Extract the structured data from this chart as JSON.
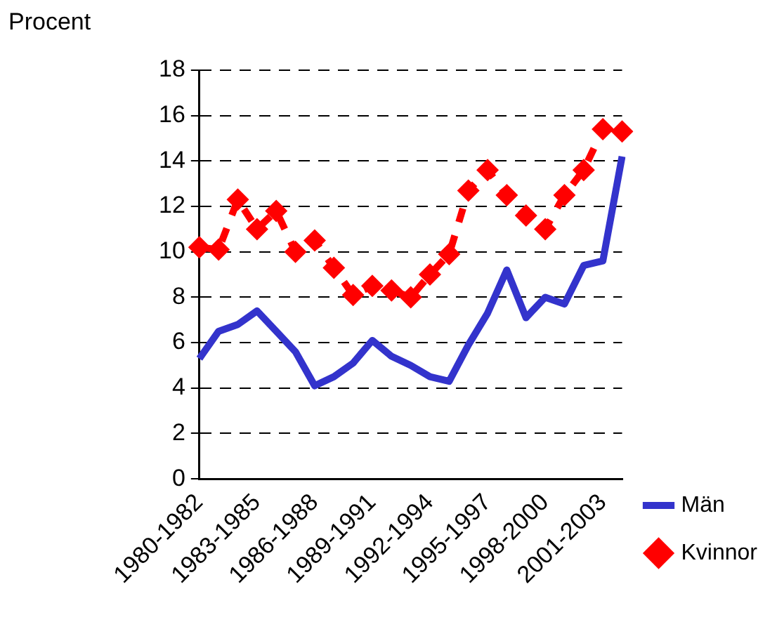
{
  "chart_data": {
    "type": "line",
    "ylabel": "Procent",
    "categories": [
      "1980-1982",
      null,
      null,
      "1983-1985",
      null,
      null,
      "1986-1988",
      null,
      null,
      "1989-1991",
      null,
      null,
      "1992-1994",
      null,
      null,
      "1995-1997",
      null,
      null,
      "1998-2000",
      null,
      null,
      "2001-2003",
      null
    ],
    "series": [
      {
        "name": "Män",
        "color": "#3333cc",
        "line_style": "solid",
        "marker": "none",
        "values": [
          5.3,
          6.5,
          6.8,
          7.4,
          6.5,
          5.6,
          4.1,
          4.5,
          5.1,
          6.1,
          5.4,
          5.0,
          4.5,
          4.3,
          5.9,
          7.3,
          9.2,
          7.1,
          8.0,
          7.7,
          9.4,
          9.6,
          14.2
        ]
      },
      {
        "name": "Kvinnor",
        "color": "#ff0000",
        "line_style": "dashed",
        "marker": "diamond",
        "values": [
          10.2,
          10.1,
          12.3,
          11.0,
          11.8,
          10.0,
          10.5,
          9.3,
          8.1,
          8.5,
          8.3,
          8.0,
          9.0,
          9.9,
          12.7,
          13.6,
          12.5,
          11.6,
          11.0,
          12.5,
          13.6,
          15.4,
          15.3
        ]
      }
    ],
    "ylim": [
      0,
      18
    ],
    "yticks": [
      0,
      2,
      4,
      6,
      8,
      10,
      12,
      14,
      16,
      18
    ],
    "grid": "y",
    "legend": "bottom right"
  }
}
